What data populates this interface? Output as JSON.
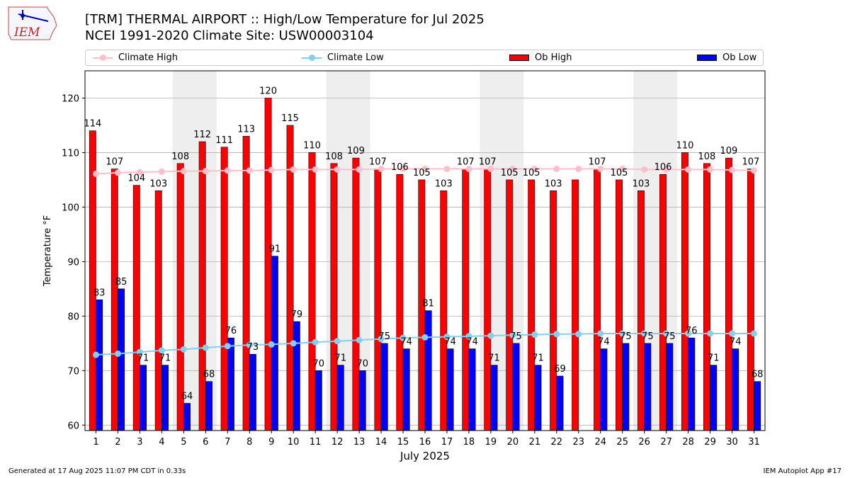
{
  "header": {
    "logo_text": "IEM",
    "title_line1": "[TRM] THERMAL AIRPORT :: High/Low Temperature for Jul 2025",
    "title_line2": "NCEI 1991-2020 Climate Site: USW00003104"
  },
  "footer": {
    "generated": "Generated at 17 Aug 2025 11:07 PM CDT in 0.33s",
    "app": "IEM Autoplot App #17"
  },
  "colors": {
    "ob_high": "#ff0000",
    "ob_low": "#0000ff",
    "climate_high": "#ffc0cb",
    "climate_low": "#87ceeb",
    "weekend_shade": "#eeeeee",
    "grid": "#b0b0b0"
  },
  "chart_data": {
    "type": "bar",
    "xlabel": "July 2025",
    "ylabel": "Temperature °F",
    "ylim": [
      59,
      125
    ],
    "yticks": [
      60,
      70,
      80,
      90,
      100,
      110,
      120
    ],
    "grid": "horizontal",
    "legend_position": "top",
    "categories": [
      "1",
      "2",
      "3",
      "4",
      "5",
      "6",
      "7",
      "8",
      "9",
      "10",
      "11",
      "12",
      "13",
      "14",
      "15",
      "16",
      "17",
      "18",
      "19",
      "20",
      "21",
      "22",
      "23",
      "24",
      "25",
      "26",
      "27",
      "28",
      "29",
      "30",
      "31"
    ],
    "shaded_weekend_days": [
      [
        5,
        6
      ],
      [
        12,
        13
      ],
      [
        19,
        20
      ],
      [
        26,
        27
      ]
    ],
    "series": [
      {
        "name": "Ob High",
        "kind": "bar",
        "values": [
          114,
          107,
          104,
          103,
          108,
          112,
          111,
          113,
          120,
          115,
          110,
          108,
          109,
          107,
          106,
          105,
          103,
          107,
          107,
          105,
          105,
          103,
          105,
          107,
          105,
          103,
          106,
          110,
          108,
          109,
          107
        ],
        "labels": [
          "114",
          "107",
          "104",
          "103",
          "108",
          "112",
          "111",
          "113",
          "120",
          "115",
          "110",
          "108",
          "109",
          "107",
          "106",
          "105",
          "103",
          "107",
          "107",
          "105",
          "105",
          "103",
          "",
          "107",
          "105",
          "103",
          "106",
          "110",
          "108",
          "109",
          "107"
        ]
      },
      {
        "name": "Ob Low",
        "kind": "bar",
        "values": [
          83,
          85,
          71,
          71,
          64,
          68,
          76,
          73,
          91,
          79,
          70,
          71,
          70,
          75,
          74,
          81,
          74,
          74,
          71,
          75,
          71,
          69,
          null,
          74,
          75,
          75,
          75,
          76,
          71,
          74,
          68
        ],
        "labels": [
          "83",
          "85",
          "71",
          "71",
          "64",
          "68",
          "76",
          "73",
          "91",
          "79",
          "70",
          "71",
          "70",
          "75",
          "74",
          "81",
          "74",
          "74",
          "71",
          "75",
          "71",
          "69",
          "",
          "74",
          "75",
          "75",
          "75",
          "76",
          "71",
          "74",
          "68"
        ]
      },
      {
        "name": "Climate High",
        "kind": "line",
        "values": [
          106.1,
          106.3,
          106.4,
          106.5,
          106.6,
          106.6,
          106.7,
          106.7,
          106.8,
          106.9,
          106.9,
          106.9,
          106.9,
          107.0,
          107.0,
          107.0,
          107.0,
          107.0,
          107.0,
          107.0,
          107.0,
          107.0,
          107.0,
          107.0,
          107.0,
          106.9,
          106.9,
          106.9,
          106.9,
          106.8,
          106.7
        ]
      },
      {
        "name": "Climate Low",
        "kind": "line",
        "values": [
          72.9,
          73.1,
          73.4,
          73.7,
          73.9,
          74.2,
          74.5,
          74.7,
          74.8,
          75.0,
          75.2,
          75.4,
          75.6,
          75.8,
          76.0,
          76.1,
          76.2,
          76.3,
          76.4,
          76.5,
          76.6,
          76.7,
          76.7,
          76.8,
          76.8,
          76.8,
          76.8,
          76.8,
          76.8,
          76.8,
          76.8
        ]
      }
    ]
  }
}
